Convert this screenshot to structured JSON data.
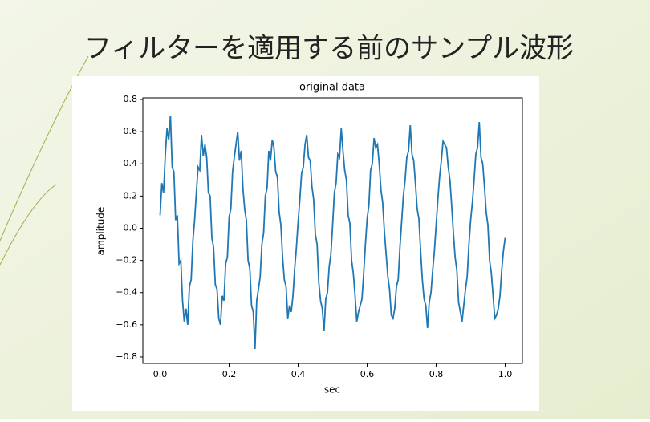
{
  "slide_title": "フィルターを適用する前のサンプル波形",
  "chart_data": {
    "type": "line",
    "title": "original data",
    "x_label": "sec",
    "y_label": "amplitude",
    "xlim": [
      -0.05,
      1.05
    ],
    "ylim": [
      -0.84,
      0.81
    ],
    "xticks": [
      {
        "value": 0,
        "label": "0.0"
      },
      0.2,
      0.4,
      0.6,
      0.8,
      {
        "value": 1,
        "label": "1.0"
      }
    ],
    "yticks": [
      {
        "value": -0.8,
        "label": "−0.8"
      },
      {
        "value": -0.6,
        "label": "−0.6"
      },
      {
        "value": -0.4,
        "label": "−0.4"
      },
      {
        "value": -0.2,
        "label": "−0.2"
      },
      {
        "value": 0,
        "label": "0.0"
      },
      0.2,
      0.4,
      0.6,
      0.8
    ],
    "x": [
      0,
      0.005,
      0.01,
      0.015,
      0.02,
      0.025,
      0.03,
      0.035,
      0.04,
      0.045,
      0.05,
      0.055,
      0.06,
      0.065,
      0.07,
      0.075,
      0.08,
      0.085,
      0.09,
      0.095,
      0.1,
      0.105,
      0.11,
      0.115,
      0.12,
      0.125,
      0.13,
      0.135,
      0.14,
      0.145,
      0.15,
      0.155,
      0.16,
      0.165,
      0.17,
      0.175,
      0.18,
      0.185,
      0.19,
      0.195,
      0.2,
      0.205,
      0.21,
      0.215,
      0.22,
      0.225,
      0.23,
      0.235,
      0.24,
      0.245,
      0.25,
      0.255,
      0.26,
      0.265,
      0.27,
      0.275,
      0.28,
      0.285,
      0.29,
      0.295,
      0.3,
      0.305,
      0.31,
      0.315,
      0.32,
      0.325,
      0.33,
      0.335,
      0.34,
      0.345,
      0.35,
      0.355,
      0.36,
      0.365,
      0.37,
      0.375,
      0.38,
      0.385,
      0.39,
      0.395,
      0.4,
      0.405,
      0.41,
      0.415,
      0.42,
      0.425,
      0.43,
      0.435,
      0.44,
      0.445,
      0.45,
      0.455,
      0.46,
      0.465,
      0.47,
      0.475,
      0.48,
      0.485,
      0.49,
      0.495,
      0.5,
      0.505,
      0.51,
      0.515,
      0.52,
      0.525,
      0.53,
      0.535,
      0.54,
      0.545,
      0.55,
      0.555,
      0.56,
      0.565,
      0.57,
      0.575,
      0.58,
      0.585,
      0.59,
      0.595,
      0.6,
      0.605,
      0.61,
      0.615,
      0.62,
      0.625,
      0.63,
      0.635,
      0.64,
      0.645,
      0.65,
      0.655,
      0.66,
      0.665,
      0.67,
      0.675,
      0.68,
      0.685,
      0.69,
      0.695,
      0.7,
      0.705,
      0.71,
      0.715,
      0.72,
      0.725,
      0.73,
      0.735,
      0.74,
      0.745,
      0.75,
      0.755,
      0.76,
      0.765,
      0.77,
      0.775,
      0.78,
      0.785,
      0.79,
      0.795,
      0.8,
      0.805,
      0.81,
      0.815,
      0.82,
      0.825,
      0.83,
      0.835,
      0.84,
      0.845,
      0.85,
      0.855,
      0.86,
      0.865,
      0.87,
      0.875,
      0.88,
      0.885,
      0.89,
      0.895,
      0.9,
      0.905,
      0.91,
      0.915,
      0.92,
      0.925,
      0.93,
      0.935,
      0.94,
      0.945,
      0.95,
      0.955,
      0.96,
      0.965,
      0.97,
      0.975,
      0.98,
      0.985,
      0.99,
      0.995,
      1
    ],
    "series": [
      {
        "color": "#1f77b4",
        "values": [
          0.08,
          0.28,
          0.22,
          0.45,
          0.62,
          0.55,
          0.7,
          0.38,
          0.35,
          0.05,
          0.08,
          -0.22,
          -0.2,
          -0.45,
          -0.58,
          -0.5,
          -0.6,
          -0.36,
          -0.32,
          -0.08,
          0.05,
          0.22,
          0.38,
          0.36,
          0.58,
          0.45,
          0.52,
          0.44,
          0.22,
          0.2,
          -0.06,
          -0.12,
          -0.35,
          -0.38,
          -0.56,
          -0.6,
          -0.42,
          -0.45,
          -0.22,
          -0.18,
          0.07,
          0.12,
          0.35,
          0.44,
          0.52,
          0.6,
          0.42,
          0.48,
          0.25,
          0.12,
          0.05,
          -0.2,
          -0.25,
          -0.48,
          -0.52,
          -0.75,
          -0.45,
          -0.38,
          -0.3,
          -0.1,
          -0.03,
          0.2,
          0.25,
          0.48,
          0.42,
          0.55,
          0.5,
          0.35,
          0.32,
          0.1,
          0.02,
          -0.18,
          -0.32,
          -0.36,
          -0.56,
          -0.48,
          -0.52,
          -0.42,
          -0.25,
          -0.12,
          0.04,
          0.18,
          0.34,
          0.38,
          0.52,
          0.58,
          0.44,
          0.42,
          0.26,
          0.18,
          -0.04,
          -0.1,
          -0.34,
          -0.45,
          -0.5,
          -0.64,
          -0.44,
          -0.4,
          -0.24,
          -0.16,
          0.02,
          0.22,
          0.28,
          0.46,
          0.44,
          0.62,
          0.48,
          0.36,
          0.3,
          0.08,
          0.03,
          -0.2,
          -0.28,
          -0.42,
          -0.58,
          -0.52,
          -0.48,
          -0.44,
          -0.28,
          -0.1,
          0.06,
          0.14,
          0.36,
          0.4,
          0.56,
          0.5,
          0.52,
          0.4,
          0.24,
          0.16,
          -0.02,
          -0.16,
          -0.3,
          -0.38,
          -0.54,
          -0.56,
          -0.5,
          -0.36,
          -0.32,
          -0.12,
          0.04,
          0.2,
          0.3,
          0.44,
          0.48,
          0.64,
          0.46,
          0.42,
          0.28,
          0.12,
          0.06,
          -0.14,
          -0.32,
          -0.44,
          -0.48,
          -0.62,
          -0.46,
          -0.4,
          -0.26,
          -0.14,
          0.02,
          0.18,
          0.32,
          0.42,
          0.54,
          0.52,
          0.5,
          0.38,
          0.3,
          0.14,
          -0.03,
          -0.18,
          -0.26,
          -0.46,
          -0.52,
          -0.58,
          -0.48,
          -0.38,
          -0.3,
          -0.1,
          0.05,
          0.16,
          0.3,
          0.46,
          0.5,
          0.66,
          0.44,
          0.4,
          0.26,
          0.1,
          0.02,
          -0.2,
          -0.28,
          -0.42,
          -0.56,
          -0.54,
          -0.5,
          -0.42,
          -0.26,
          -0.14,
          -0.06
        ]
      }
    ]
  }
}
